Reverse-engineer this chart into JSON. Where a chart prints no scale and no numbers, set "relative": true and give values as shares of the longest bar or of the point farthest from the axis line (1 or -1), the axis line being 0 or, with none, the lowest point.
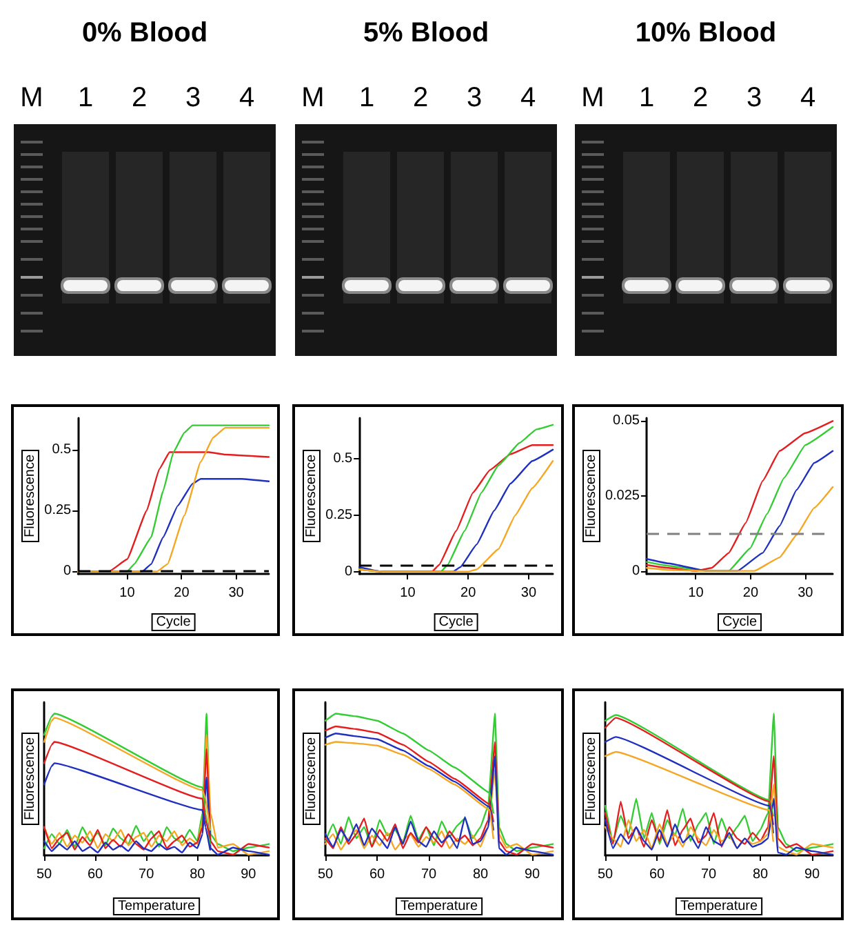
{
  "chart_data": [
    {
      "type": "line",
      "title": "0% Blood",
      "annotations": [
        "M",
        "1",
        "2",
        "3",
        "4"
      ],
      "xlabel": "Cycle",
      "ylabel": "Fluorescence",
      "xlim": [
        1,
        36
      ],
      "xticks": [
        10,
        20,
        30
      ],
      "ylim": [
        -0.01,
        0.63
      ],
      "yticks": [
        0,
        0.25,
        0.5
      ],
      "ref_lines": [
        {
          "axis": "y",
          "value": 0.005,
          "color": "#000000",
          "line_style": "dashed"
        }
      ],
      "series": [
        {
          "color": "#e41e1e",
          "x": [
            1,
            6.7,
            10,
            13.6,
            15.9,
            17.8,
            25,
            28,
            36
          ],
          "values": [
            0,
            0,
            0.05,
            0.25,
            0.42,
            0.49,
            0.49,
            0.48,
            0.47
          ]
        },
        {
          "color": "#33cc33",
          "x": [
            1,
            10,
            11.3,
            14.4,
            16.6,
            18.5,
            20.5,
            22,
            36
          ],
          "values": [
            0,
            0,
            0.03,
            0.14,
            0.33,
            0.49,
            0.57,
            0.6,
            0.6
          ]
        },
        {
          "color": "#1f2fbf",
          "x": [
            1,
            12.8,
            14.4,
            16.6,
            19.3,
            22,
            23.5,
            31,
            36
          ],
          "values": [
            0,
            0,
            0.03,
            0.14,
            0.27,
            0.36,
            0.38,
            0.38,
            0.37
          ]
        },
        {
          "color": "#f5a623",
          "x": [
            1,
            15.5,
            17.4,
            20.5,
            23.5,
            25.8,
            28,
            36
          ],
          "values": [
            0,
            0,
            0.03,
            0.23,
            0.45,
            0.55,
            0.59,
            0.59
          ]
        }
      ]
    },
    {
      "type": "line",
      "title": "5% Blood",
      "annotations": [
        "M",
        "1",
        "2",
        "3",
        "4"
      ],
      "xlabel": "Cycle",
      "ylabel": "Fluorescence",
      "xlim": [
        2,
        34
      ],
      "xticks": [
        10,
        20,
        30
      ],
      "ylim": [
        -0.01,
        0.68
      ],
      "yticks": [
        0,
        0.25,
        0.5
      ],
      "ref_lines": [
        {
          "axis": "y",
          "value": 0.03,
          "color": "#000000",
          "line_style": "dashed"
        }
      ],
      "series": [
        {
          "color": "#e41e1e",
          "x": [
            2,
            6,
            14,
            15.2,
            18,
            20.8,
            23.6,
            27,
            30.6,
            34
          ],
          "values": [
            0.01,
            0,
            0,
            0.03,
            0.18,
            0.35,
            0.45,
            0.52,
            0.56,
            0.56
          ]
        },
        {
          "color": "#33cc33",
          "x": [
            2,
            6,
            15.5,
            16.6,
            19.4,
            22.2,
            25,
            28.5,
            31.3,
            34
          ],
          "values": [
            0.01,
            0,
            0,
            0.03,
            0.18,
            0.35,
            0.47,
            0.57,
            0.63,
            0.65
          ]
        },
        {
          "color": "#1f2fbf",
          "x": [
            2,
            5.7,
            17.5,
            18.7,
            21.4,
            24.3,
            27,
            30.6,
            34
          ],
          "values": [
            0.02,
            0,
            0,
            0.02,
            0.12,
            0.27,
            0.39,
            0.49,
            0.54
          ]
        },
        {
          "color": "#f5a623",
          "x": [
            2,
            6,
            20,
            21.4,
            25,
            27.8,
            30.6,
            34
          ],
          "values": [
            0.01,
            0,
            0,
            0.01,
            0.1,
            0.25,
            0.37,
            0.49
          ]
        }
      ]
    },
    {
      "type": "line",
      "title": "10% Blood",
      "annotations": [
        "M",
        "1",
        "2",
        "3",
        "4"
      ],
      "xlabel": "Cycle",
      "ylabel": "Fluorescence",
      "xlim": [
        1,
        35
      ],
      "xticks": [
        10,
        20,
        30
      ],
      "ylim": [
        -0.001,
        0.051
      ],
      "yticks": [
        0,
        0.025,
        0.05
      ],
      "ref_lines": [
        {
          "axis": "y",
          "value": 0.0125,
          "color": "#808080",
          "line_style": "dashed"
        }
      ],
      "series": [
        {
          "color": "#e41e1e",
          "x": [
            1,
            5,
            10,
            12.9,
            16,
            19.1,
            22.2,
            25.3,
            30,
            35
          ],
          "values": [
            0.002,
            0.001,
            0,
            0.001,
            0.006,
            0.016,
            0.03,
            0.04,
            0.046,
            0.05
          ]
        },
        {
          "color": "#33cc33",
          "x": [
            1,
            5,
            12,
            16,
            19.9,
            23,
            26.1,
            30,
            35
          ],
          "values": [
            0.003,
            0.0017,
            0,
            0,
            0.0075,
            0.019,
            0.031,
            0.042,
            0.048
          ]
        },
        {
          "color": "#1f2fbf",
          "x": [
            1,
            5,
            12,
            17.6,
            22.2,
            25.3,
            28.4,
            31.6,
            35
          ],
          "values": [
            0.004,
            0.0025,
            0,
            0,
            0.006,
            0.015,
            0.027,
            0.036,
            0.04
          ]
        },
        {
          "color": "#f5a623",
          "x": [
            1,
            5,
            12,
            20.7,
            25.3,
            28.4,
            31.6,
            35
          ],
          "values": [
            0.001,
            0.0003,
            0,
            0,
            0.0045,
            0.012,
            0.021,
            0.028
          ]
        }
      ]
    },
    {
      "type": "line",
      "relative": true,
      "xlabel": "Temperature",
      "ylabel": "Fluorescence",
      "xlim": [
        50,
        94
      ],
      "xticks": [
        50,
        60,
        70,
        80,
        90
      ],
      "x": [
        50,
        51.5,
        53,
        54.5,
        56,
        57.5,
        59,
        60.5,
        62,
        63.5,
        65,
        66.5,
        68,
        69.5,
        71,
        72.5,
        74,
        75.5,
        77,
        78.5,
        80,
        81,
        81.8,
        82.6,
        84,
        87,
        90,
        94
      ],
      "series": [
        {
          "color": "#33cc33",
          "values": [
            0.05,
            0.15,
            0.08,
            0.18,
            0.06,
            0.2,
            0.1,
            0.16,
            0.07,
            0.19,
            0.12,
            0.08,
            0.21,
            0.1,
            0.17,
            0.06,
            0.2,
            0.12,
            0.09,
            0.18,
            0.1,
            0.3,
            1.0,
            0.15,
            0.08,
            0.03,
            0.055,
            0.08
          ]
        },
        {
          "color": "#f5a623",
          "values": [
            0.2,
            0.08,
            0.16,
            0.06,
            0.14,
            0.09,
            0.17,
            0.05,
            0.15,
            0.1,
            0.18,
            0.07,
            0.13,
            0.16,
            0.06,
            0.14,
            0.1,
            0.17,
            0.07,
            0.12,
            0.08,
            0.25,
            0.85,
            0.3,
            0.055,
            0.08,
            0.005,
            0.03
          ]
        },
        {
          "color": "#e41e1e",
          "values": [
            0.2,
            0.05,
            0.12,
            0.16,
            0.04,
            0.13,
            0.07,
            0.18,
            0.05,
            0.11,
            0.06,
            0.15,
            0.08,
            0.04,
            0.12,
            0.17,
            0.05,
            0.1,
            0.14,
            0.06,
            0.09,
            0.2,
            0.75,
            0.1,
            0.03,
            0.005,
            0.08,
            0.055
          ]
        },
        {
          "color": "#1f2fbf",
          "values": [
            0.1,
            0.03,
            0.08,
            0.04,
            0.1,
            0.03,
            0.06,
            0.02,
            0.09,
            0.04,
            0.07,
            0.03,
            0.1,
            0.05,
            0.03,
            0.08,
            0.04,
            0.06,
            0.02,
            0.09,
            0.05,
            0.15,
            0.55,
            0.05,
            0.005,
            0.055,
            0.03,
            0.005
          ]
        },
        {
          "color": "#33cc33",
          "x": [
            50,
            51.5,
            52,
            81,
            81.6,
            82.5
          ],
          "values": [
            0.85,
            0.98,
            1.0,
            0.48,
            0.3,
            0.08
          ]
        },
        {
          "color": "#f5a623",
          "x": [
            50,
            51.5,
            52,
            81,
            81.6,
            82.5
          ],
          "values": [
            0.8,
            0.95,
            0.97,
            0.46,
            0.4,
            0.18
          ]
        },
        {
          "color": "#e41e1e",
          "x": [
            50,
            51.5,
            52,
            81,
            81.6,
            82.5
          ],
          "values": [
            0.65,
            0.78,
            0.8,
            0.4,
            0.25,
            0.12
          ]
        },
        {
          "color": "#1f2fbf",
          "x": [
            50,
            51.5,
            52,
            81,
            81.6,
            82.5
          ],
          "values": [
            0.5,
            0.63,
            0.65,
            0.32,
            0.2,
            0.04
          ]
        }
      ]
    },
    {
      "type": "line",
      "relative": true,
      "xlabel": "Temperature",
      "ylabel": "Fluorescence",
      "xlim": [
        50,
        94
      ],
      "xticks": [
        50,
        60,
        70,
        80,
        90
      ],
      "x": [
        50,
        51.5,
        53,
        54.5,
        56,
        57.5,
        59,
        60.5,
        62,
        63.5,
        65,
        66.5,
        68,
        69.5,
        71,
        72.5,
        74,
        75.5,
        77,
        78.5,
        80,
        81.5,
        82.8,
        83.6,
        85,
        87,
        90,
        94
      ],
      "series": [
        {
          "color": "#33cc33",
          "values": [
            0.1,
            0.22,
            0.08,
            0.27,
            0.12,
            0.2,
            0.06,
            0.25,
            0.14,
            0.18,
            0.09,
            0.28,
            0.11,
            0.2,
            0.07,
            0.24,
            0.13,
            0.21,
            0.26,
            0.12,
            0.2,
            0.35,
            1.0,
            0.2,
            0.08,
            0.03,
            0.055,
            0.08
          ]
        },
        {
          "color": "#f5a623",
          "values": [
            0.08,
            0.15,
            0.04,
            0.12,
            0.18,
            0.05,
            0.14,
            0.07,
            0.16,
            0.04,
            0.11,
            0.15,
            0.06,
            0.13,
            0.09,
            0.17,
            0.05,
            0.12,
            0.08,
            0.14,
            0.06,
            0.2,
            0.6,
            0.15,
            0.055,
            0.08,
            0.005,
            0.03
          ]
        },
        {
          "color": "#e41e1e",
          "values": [
            0.12,
            0.05,
            0.2,
            0.08,
            0.15,
            0.26,
            0.06,
            0.18,
            0.1,
            0.22,
            0.05,
            0.16,
            0.09,
            0.2,
            0.12,
            0.06,
            0.17,
            0.1,
            0.14,
            0.07,
            0.12,
            0.25,
            0.8,
            0.1,
            0.03,
            0.005,
            0.08,
            0.055
          ]
        },
        {
          "color": "#1f2fbf",
          "values": [
            0.15,
            0.06,
            0.18,
            0.1,
            0.22,
            0.07,
            0.19,
            0.12,
            0.05,
            0.2,
            0.08,
            0.24,
            0.1,
            0.06,
            0.17,
            0.09,
            0.14,
            0.05,
            0.27,
            0.08,
            0.1,
            0.2,
            0.7,
            0.05,
            0.005,
            0.055,
            0.03,
            0.005
          ]
        },
        {
          "color": "#33cc33",
          "x": [
            50,
            52,
            56,
            60,
            65,
            70,
            75,
            81.8,
            82.5
          ],
          "values": [
            0.95,
            1.0,
            0.98,
            0.95,
            0.86,
            0.74,
            0.62,
            0.44,
            0.3
          ]
        },
        {
          "color": "#e41e1e",
          "x": [
            50,
            52,
            56,
            60,
            65,
            70,
            75,
            81.8,
            82.5
          ],
          "values": [
            0.88,
            0.91,
            0.89,
            0.865,
            0.78,
            0.66,
            0.54,
            0.36,
            0.24
          ]
        },
        {
          "color": "#1f2fbf",
          "x": [
            50,
            52,
            56,
            60,
            65,
            70,
            75,
            81.8,
            82.5
          ],
          "values": [
            0.83,
            0.86,
            0.84,
            0.82,
            0.74,
            0.63,
            0.52,
            0.34,
            0.18
          ]
        },
        {
          "color": "#f5a623",
          "x": [
            50,
            52,
            56,
            60,
            65,
            70,
            75,
            81.8,
            82.5
          ],
          "values": [
            0.78,
            0.8,
            0.79,
            0.775,
            0.71,
            0.61,
            0.5,
            0.32,
            0.12
          ]
        }
      ]
    },
    {
      "type": "line",
      "relative": true,
      "xlabel": "Temperature",
      "ylabel": "Fluorescence",
      "xlim": [
        50,
        94
      ],
      "xticks": [
        50,
        60,
        70,
        80,
        90
      ],
      "x": [
        50,
        51.5,
        53,
        54.5,
        56,
        57.5,
        59,
        60.5,
        62,
        63.5,
        65,
        66.5,
        68,
        69.5,
        71,
        72.5,
        74,
        75.5,
        77,
        78.5,
        80,
        81.5,
        82.6,
        83.4,
        85,
        87,
        90,
        94
      ],
      "series": [
        {
          "color": "#33cc33",
          "values": [
            0.35,
            0.1,
            0.28,
            0.15,
            0.4,
            0.12,
            0.3,
            0.08,
            0.25,
            0.14,
            0.33,
            0.1,
            0.22,
            0.3,
            0.08,
            0.26,
            0.12,
            0.2,
            0.28,
            0.1,
            0.18,
            0.3,
            1.0,
            0.2,
            0.08,
            0.03,
            0.055,
            0.08
          ]
        },
        {
          "color": "#e41e1e",
          "values": [
            0.3,
            0.08,
            0.38,
            0.12,
            0.2,
            0.06,
            0.25,
            0.1,
            0.32,
            0.07,
            0.18,
            0.26,
            0.09,
            0.14,
            0.3,
            0.06,
            0.2,
            0.12,
            0.08,
            0.16,
            0.1,
            0.2,
            0.7,
            0.12,
            0.055,
            0.08,
            0.005,
            0.03
          ]
        },
        {
          "color": "#f5a623",
          "values": [
            0.2,
            0.12,
            0.06,
            0.25,
            0.1,
            0.18,
            0.05,
            0.22,
            0.08,
            0.15,
            0.06,
            0.2,
            0.12,
            0.07,
            0.18,
            0.1,
            0.14,
            0.05,
            0.12,
            0.08,
            0.1,
            0.15,
            0.5,
            0.06,
            0.03,
            0.005,
            0.08,
            0.055
          ]
        },
        {
          "color": "#1f2fbf",
          "values": [
            0.25,
            0.05,
            0.15,
            0.08,
            0.2,
            0.1,
            0.04,
            0.18,
            0.06,
            0.22,
            0.09,
            0.14,
            0.05,
            0.2,
            0.1,
            0.07,
            0.16,
            0.05,
            0.12,
            0.06,
            0.08,
            0.12,
            0.4,
            0.02,
            0.005,
            0.055,
            0.03,
            0.005
          ]
        },
        {
          "color": "#33cc33",
          "x": [
            50,
            52,
            81.8,
            82.5
          ],
          "values": [
            0.95,
            0.99,
            0.39,
            0.28
          ]
        },
        {
          "color": "#e41e1e",
          "x": [
            50,
            52,
            81.8,
            82.5
          ],
          "values": [
            0.9,
            0.97,
            0.38,
            0.22
          ]
        },
        {
          "color": "#1f2fbf",
          "x": [
            50,
            52,
            81.8,
            82.5
          ],
          "values": [
            0.8,
            0.835,
            0.35,
            0.16
          ]
        },
        {
          "color": "#f5a623",
          "x": [
            50,
            52,
            81.8,
            82.5
          ],
          "values": [
            0.7,
            0.73,
            0.32,
            0.1
          ]
        }
      ]
    }
  ]
}
